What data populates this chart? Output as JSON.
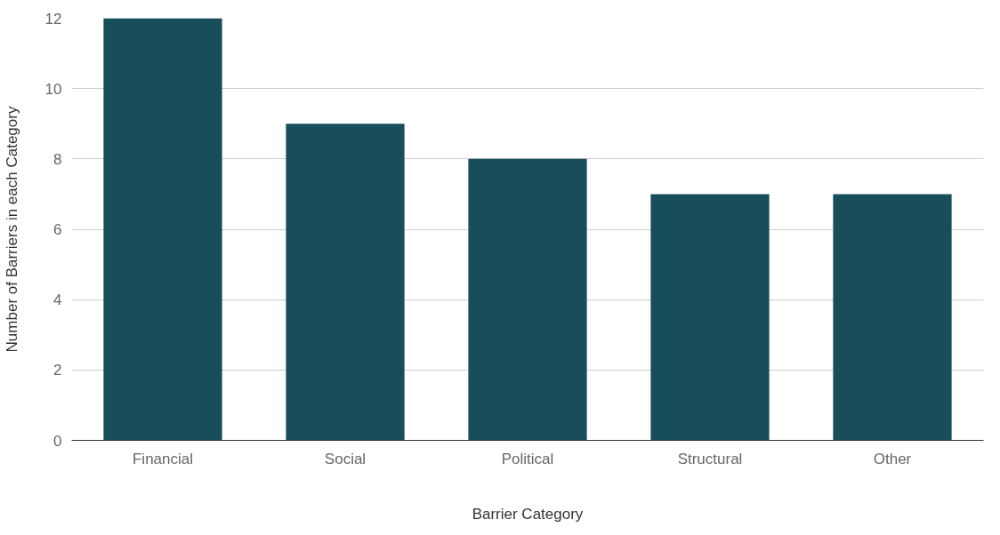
{
  "chart_data": {
    "type": "bar",
    "xlabel": "Barrier Category",
    "ylabel": "Number of Barriers in each Category",
    "categories": [
      "Financial",
      "Social",
      "Political",
      "Structural",
      "Other"
    ],
    "values": [
      12,
      9,
      8,
      7,
      7
    ],
    "color": "#174e5a",
    "ylim": [
      0,
      12
    ],
    "yticks": [
      0,
      2,
      4,
      6,
      8,
      10,
      12
    ],
    "grid": "y"
  }
}
